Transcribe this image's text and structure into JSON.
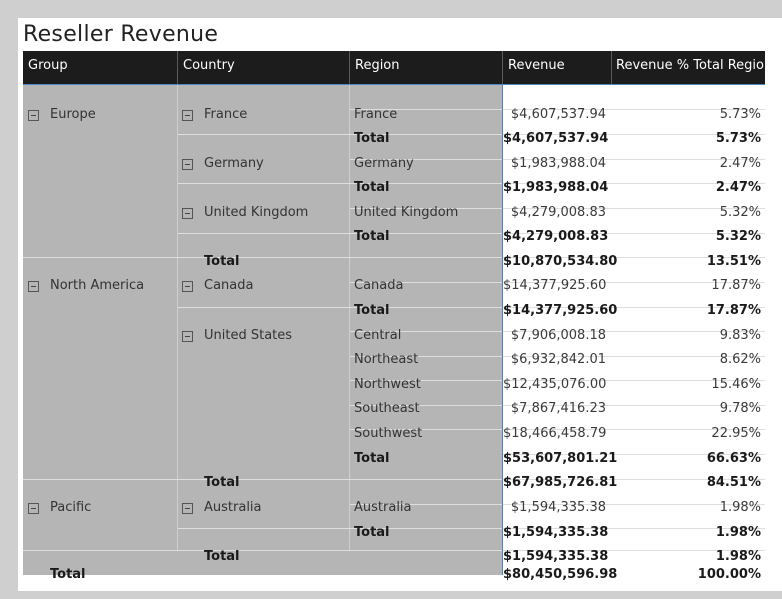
{
  "title": "Reseller Revenue",
  "headers": {
    "group": "Group",
    "country": "Country",
    "region": "Region",
    "revenue": "Revenue",
    "pct": "Revenue % Total Region"
  },
  "groups": [
    {
      "label": "Europe"
    },
    {
      "label": "North America"
    },
    {
      "label": "Pacific"
    }
  ],
  "countries": [
    {
      "label": "France"
    },
    {
      "label": "Germany"
    },
    {
      "label": "United Kingdom"
    },
    {
      "label": "Canada"
    },
    {
      "label": "United States"
    },
    {
      "label": "Australia"
    }
  ],
  "rows": [
    {
      "kind": "region",
      "label": "France",
      "revenue": "$4,607,537.94",
      "pct": "5.73%"
    },
    {
      "kind": "country-total",
      "label": "Total",
      "revenue": "$4,607,537.94",
      "pct": "5.73%"
    },
    {
      "kind": "region",
      "label": "Germany",
      "revenue": "$1,983,988.04",
      "pct": "2.47%"
    },
    {
      "kind": "country-total",
      "label": "Total",
      "revenue": "$1,983,988.04",
      "pct": "2.47%"
    },
    {
      "kind": "region",
      "label": "United Kingdom",
      "revenue": "$4,279,008.83",
      "pct": "5.32%"
    },
    {
      "kind": "country-total",
      "label": "Total",
      "revenue": "$4,279,008.83",
      "pct": "5.32%"
    },
    {
      "kind": "group-total",
      "label": "Total",
      "revenue": "$10,870,534.80",
      "pct": "13.51%"
    },
    {
      "kind": "region",
      "label": "Canada",
      "revenue": "$14,377,925.60",
      "pct": "17.87%"
    },
    {
      "kind": "country-total",
      "label": "Total",
      "revenue": "$14,377,925.60",
      "pct": "17.87%"
    },
    {
      "kind": "region",
      "label": "Central",
      "revenue": "$7,906,008.18",
      "pct": "9.83%"
    },
    {
      "kind": "region",
      "label": "Northeast",
      "revenue": "$6,932,842.01",
      "pct": "8.62%"
    },
    {
      "kind": "region",
      "label": "Northwest",
      "revenue": "$12,435,076.00",
      "pct": "15.46%"
    },
    {
      "kind": "region",
      "label": "Southeast",
      "revenue": "$7,867,416.23",
      "pct": "9.78%"
    },
    {
      "kind": "region",
      "label": "Southwest",
      "revenue": "$18,466,458.79",
      "pct": "22.95%"
    },
    {
      "kind": "country-total",
      "label": "Total",
      "revenue": "$53,607,801.21",
      "pct": "66.63%"
    },
    {
      "kind": "group-total",
      "label": "Total",
      "revenue": "$67,985,726.81",
      "pct": "84.51%"
    },
    {
      "kind": "region",
      "label": "Australia",
      "revenue": "$1,594,335.38",
      "pct": "1.98%"
    },
    {
      "kind": "country-total",
      "label": "Total",
      "revenue": "$1,594,335.38",
      "pct": "1.98%"
    },
    {
      "kind": "group-total",
      "label": "Total",
      "revenue": "$1,594,335.38",
      "pct": "1.98%"
    },
    {
      "kind": "grand-total",
      "label": "Total",
      "revenue": "$80,450,596.98",
      "pct": "100.00%"
    }
  ],
  "colors": {
    "header_bg": "#1c1c1c",
    "header_text": "#ffffff",
    "row_header_bg": "#b5b5b5",
    "accent_line": "#4a87c7"
  }
}
